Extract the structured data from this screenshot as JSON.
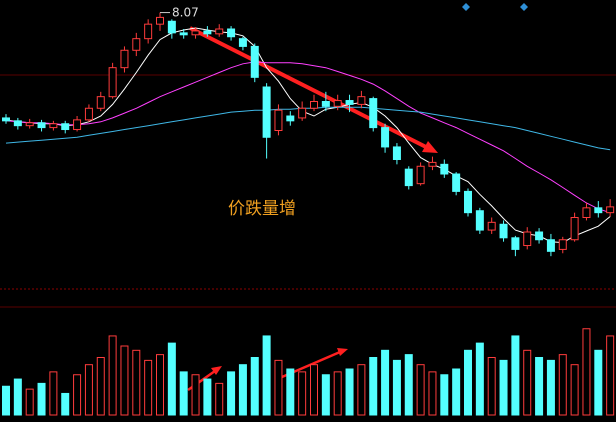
{
  "chart_data": [
    {
      "type": "candlestick",
      "ylim": [
        5.2,
        8.2
      ],
      "up_color": "#ff3c3c",
      "down_color": "#54ffff",
      "open": [
        6.98,
        6.95,
        6.9,
        6.93,
        6.88,
        6.92,
        6.86,
        6.96,
        7.08,
        7.2,
        7.5,
        7.68,
        7.8,
        7.95,
        7.98,
        7.86,
        7.84,
        7.88,
        7.85,
        7.9,
        7.8,
        7.72,
        7.3,
        6.85,
        7.0,
        6.98,
        7.08,
        7.15,
        7.1,
        7.16,
        7.12,
        7.18,
        6.88,
        6.68,
        6.45,
        6.3,
        6.48,
        6.5,
        6.4,
        6.22,
        6.02,
        5.82,
        5.88,
        5.74,
        5.66,
        5.8,
        5.72,
        5.62,
        5.72,
        5.95,
        6.05,
        6.0
      ],
      "high": [
        7.02,
        6.98,
        6.97,
        6.96,
        6.95,
        6.95,
        7.0,
        7.12,
        7.25,
        7.55,
        7.72,
        7.86,
        8.0,
        8.07,
        8.0,
        7.9,
        7.92,
        7.93,
        7.95,
        7.93,
        7.82,
        7.75,
        7.34,
        7.12,
        7.05,
        7.15,
        7.22,
        7.25,
        7.22,
        7.22,
        7.26,
        7.2,
        6.92,
        6.72,
        6.48,
        6.52,
        6.58,
        6.55,
        6.42,
        6.25,
        6.05,
        5.95,
        5.92,
        5.76,
        5.85,
        5.84,
        5.78,
        5.75,
        6.0,
        6.1,
        6.12,
        6.14
      ],
      "low": [
        6.92,
        6.86,
        6.87,
        6.84,
        6.85,
        6.82,
        6.84,
        6.94,
        7.05,
        7.18,
        7.45,
        7.62,
        7.75,
        7.88,
        7.8,
        7.8,
        7.8,
        7.82,
        7.82,
        7.78,
        7.68,
        7.35,
        6.56,
        6.8,
        6.9,
        6.95,
        7.05,
        7.05,
        7.06,
        7.04,
        7.08,
        6.84,
        6.62,
        6.5,
        6.24,
        6.28,
        6.44,
        6.36,
        6.18,
        5.96,
        5.78,
        5.78,
        5.7,
        5.55,
        5.62,
        5.68,
        5.55,
        5.58,
        5.7,
        5.92,
        5.95,
        5.96
      ],
      "close": [
        6.95,
        6.9,
        6.93,
        6.88,
        6.92,
        6.86,
        6.96,
        7.08,
        7.2,
        7.5,
        7.68,
        7.8,
        7.95,
        8.02,
        7.86,
        7.84,
        7.88,
        7.85,
        7.9,
        7.82,
        7.72,
        7.4,
        6.78,
        7.06,
        6.95,
        7.08,
        7.15,
        7.1,
        7.16,
        7.12,
        7.2,
        6.88,
        6.68,
        6.55,
        6.28,
        6.48,
        6.52,
        6.4,
        6.22,
        6.0,
        5.82,
        5.9,
        5.74,
        5.62,
        5.8,
        5.72,
        5.6,
        5.72,
        5.95,
        6.05,
        6.0,
        6.06
      ],
      "series": [
        {
          "color": "#ffffff",
          "values": [
            6.96,
            6.94,
            6.93,
            6.92,
            6.92,
            6.9,
            6.91,
            6.94,
            7.0,
            7.12,
            7.28,
            7.45,
            7.63,
            7.79,
            7.86,
            7.89,
            7.91,
            7.89,
            7.87,
            7.86,
            7.83,
            7.72,
            7.5,
            7.36,
            7.18,
            7.05,
            7.0,
            7.07,
            7.09,
            7.12,
            7.14,
            7.09,
            7.0,
            6.88,
            6.72,
            6.57,
            6.5,
            6.45,
            6.38,
            6.32,
            6.19,
            6.07,
            5.94,
            5.82,
            5.78,
            5.76,
            5.7,
            5.69,
            5.76,
            5.81,
            5.86,
            5.96
          ]
        },
        {
          "color": "#ff40ff",
          "values": [
            6.95,
            6.94,
            6.93,
            6.93,
            6.92,
            6.91,
            6.91,
            6.92,
            6.94,
            6.98,
            7.03,
            7.08,
            7.14,
            7.2,
            7.25,
            7.3,
            7.35,
            7.4,
            7.45,
            7.5,
            7.54,
            7.56,
            7.55,
            7.55,
            7.55,
            7.54,
            7.52,
            7.5,
            7.46,
            7.42,
            7.38,
            7.33,
            7.26,
            7.18,
            7.1,
            7.03,
            6.98,
            6.93,
            6.88,
            6.82,
            6.76,
            6.7,
            6.64,
            6.56,
            6.48,
            6.41,
            6.34,
            6.26,
            6.18,
            6.1,
            6.04,
            6.0
          ]
        },
        {
          "color": "#3fb7e6",
          "values": [
            6.72,
            6.73,
            6.74,
            6.75,
            6.76,
            6.77,
            6.78,
            6.8,
            6.82,
            6.84,
            6.86,
            6.88,
            6.9,
            6.92,
            6.94,
            6.96,
            6.98,
            7.0,
            7.02,
            7.04,
            7.05,
            7.06,
            7.06,
            7.07,
            7.07,
            7.08,
            7.08,
            7.09,
            7.09,
            7.09,
            7.09,
            7.08,
            7.07,
            7.06,
            7.05,
            7.04,
            7.02,
            7.0,
            6.98,
            6.96,
            6.94,
            6.92,
            6.9,
            6.88,
            6.85,
            6.82,
            6.79,
            6.76,
            6.73,
            6.7,
            6.67,
            6.65
          ]
        }
      ],
      "high_label": "8.07",
      "annotation": "价跌量增"
    },
    {
      "type": "bar",
      "ylim": [
        0,
        80
      ],
      "values": [
        20,
        25,
        18,
        22,
        30,
        15,
        28,
        35,
        40,
        55,
        48,
        45,
        38,
        42,
        50,
        30,
        28,
        25,
        22,
        30,
        35,
        40,
        55,
        38,
        32,
        30,
        35,
        28,
        30,
        32,
        35,
        40,
        45,
        38,
        42,
        35,
        30,
        28,
        32,
        45,
        50,
        40,
        38,
        55,
        45,
        40,
        38,
        42,
        35,
        60,
        45,
        55
      ]
    }
  ]
}
